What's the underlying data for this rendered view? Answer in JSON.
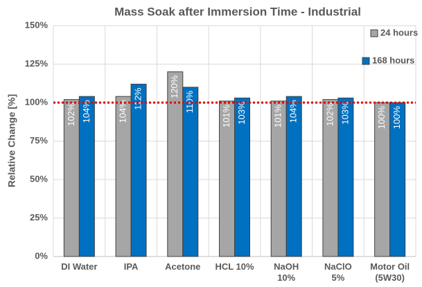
{
  "chart_data": {
    "type": "bar",
    "title": "Mass Soak after Immersion Time - Industrial",
    "y_label": "Relative Change [%]",
    "categories": [
      "DI Water",
      "IPA",
      "Acetone",
      "HCL 10%",
      "NaOH\n10%",
      "NaClO\n5%",
      "Motor Oil\n(5W30)"
    ],
    "series": [
      {
        "name": "24 hours",
        "color": "#a6a6a6",
        "values": [
          102,
          104,
          120,
          101,
          101,
          102,
          100
        ],
        "value_labels": [
          "102%",
          "104%",
          "120%",
          "101%",
          "101%",
          "102%",
          "100%"
        ]
      },
      {
        "name": "168 hours",
        "color": "#0070c0",
        "values": [
          104,
          112,
          110,
          103,
          104,
          103,
          100
        ],
        "value_labels": [
          "104%",
          "112%",
          "110%",
          "103%",
          "104%",
          "103%",
          "100%"
        ]
      }
    ],
    "ylim": [
      0,
      150
    ],
    "yticks": [
      {
        "value": 0,
        "label": "0%"
      },
      {
        "value": 25,
        "label": "25%"
      },
      {
        "value": 50,
        "label": "50%"
      },
      {
        "value": 75,
        "label": "75%"
      },
      {
        "value": 100,
        "label": "100%"
      },
      {
        "value": 125,
        "label": "125%"
      },
      {
        "value": 150,
        "label": "150%"
      }
    ],
    "grid": true,
    "reference_line": {
      "value": 100,
      "color": "#e00000"
    },
    "legend": "upper right"
  }
}
